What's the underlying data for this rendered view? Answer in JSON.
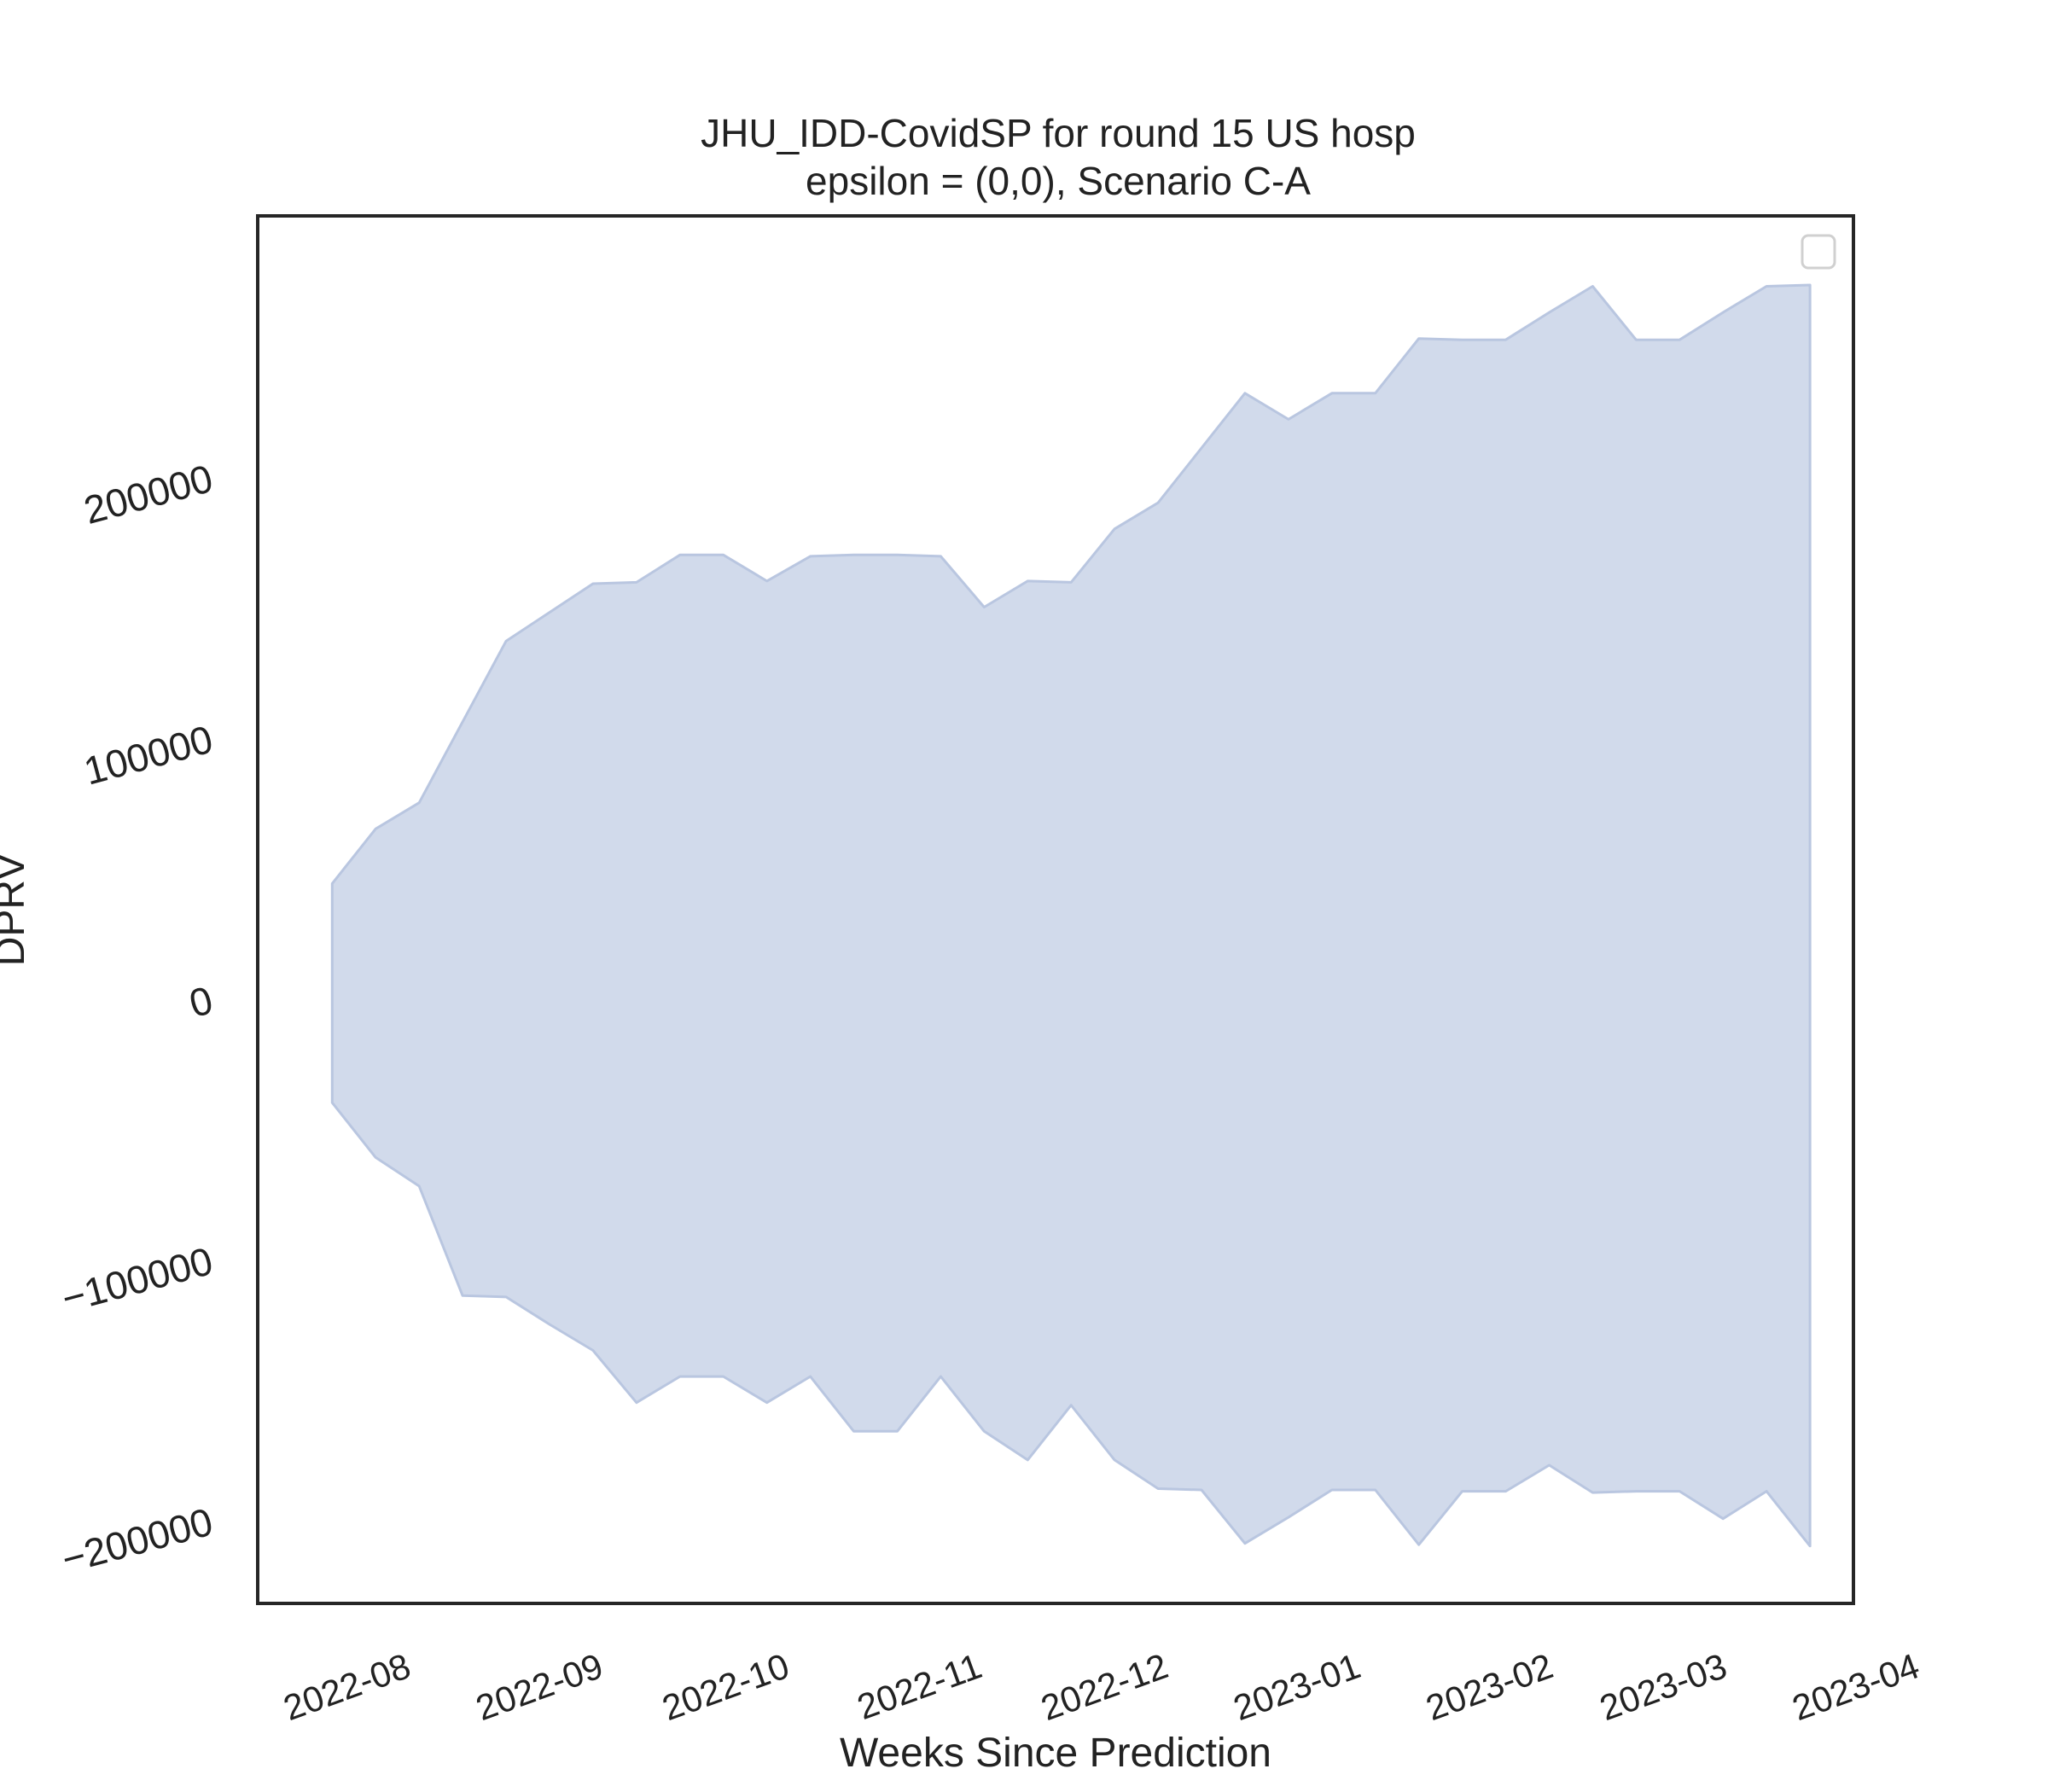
{
  "chart_data": {
    "type": "area",
    "title_line1": "JHU_IDD-CovidSP for round 15 US hosp",
    "title_line2": "epsilon = (0,0), Scenario C-A",
    "xlabel": "Weeks Since Prediction",
    "ylabel": "DPRV",
    "ylim": [
      -232000,
      300000
    ],
    "xlim": [
      "2022-07-18",
      "2023-04-01"
    ],
    "yticks": [
      -200000,
      -100000,
      0,
      100000,
      200000
    ],
    "ytick_labels": [
      "−200000",
      "−100000",
      "0",
      "100000",
      "200000"
    ],
    "xticks": [
      "2022-08-01",
      "2022-09-01",
      "2022-10-01",
      "2022-11-01",
      "2022-12-01",
      "2023-01-01",
      "2023-02-01",
      "2023-03-01",
      "2023-04-01"
    ],
    "xtick_labels": [
      "2022-08",
      "2022-09",
      "2022-10",
      "2022-11",
      "2022-12",
      "2023-01",
      "2023-02",
      "2023-03",
      "2023-04"
    ],
    "grid": false,
    "legend": "top-right (empty)",
    "fill_color": "#d1daeb",
    "edge_color": "#b9c6e0",
    "band": {
      "x": [
        "2022-07-30",
        "2022-08-06",
        "2022-08-13",
        "2022-08-20",
        "2022-08-27",
        "2022-09-03",
        "2022-09-10",
        "2022-09-17",
        "2022-09-24",
        "2022-10-01",
        "2022-10-08",
        "2022-10-15",
        "2022-10-22",
        "2022-10-29",
        "2022-11-05",
        "2022-11-12",
        "2022-11-19",
        "2022-11-26",
        "2022-12-03",
        "2022-12-10",
        "2022-12-17",
        "2022-12-24",
        "2022-12-31",
        "2023-01-07",
        "2023-01-14",
        "2023-01-21",
        "2023-01-28",
        "2023-02-04",
        "2023-02-11",
        "2023-02-18",
        "2023-02-25",
        "2023-03-04",
        "2023-03-11",
        "2023-03-18",
        "2023-03-25"
      ],
      "upper": [
        44000,
        65000,
        75000,
        106000,
        137000,
        148000,
        159000,
        159500,
        170000,
        170000,
        160000,
        169500,
        170000,
        170000,
        169500,
        150000,
        160000,
        159500,
        180000,
        190000,
        211000,
        232000,
        222000,
        232000,
        232000,
        253000,
        252500,
        252500,
        263000,
        273000,
        252500,
        252500,
        263000,
        273000,
        273500
      ],
      "lower": [
        -40000,
        -61000,
        -72000,
        -114000,
        -114500,
        -125000,
        -135000,
        -155000,
        -145000,
        -145000,
        -155000,
        -145000,
        -166000,
        -166000,
        -145000,
        -166000,
        -177000,
        -156000,
        -177000,
        -188000,
        -188500,
        -209000,
        -199000,
        -188500,
        -188500,
        -209500,
        -189000,
        -189000,
        -179000,
        -189500,
        -189000,
        -189000,
        -199500,
        -189000,
        -210000
      ]
    }
  }
}
